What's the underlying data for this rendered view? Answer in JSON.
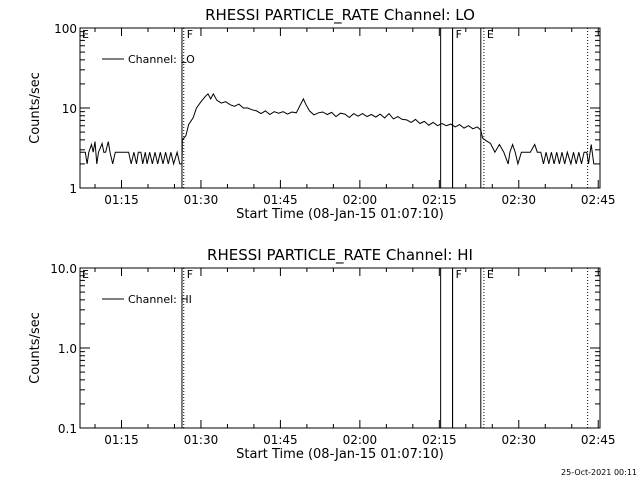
{
  "chart_data": [
    {
      "type": "line",
      "title": "RHESSI PARTICLE_RATE Channel: LO",
      "xlabel": "Start Time (08-Jan-15 01:07:10)",
      "ylabel": "Counts/sec",
      "yscale": "log",
      "ylim": [
        1,
        100
      ],
      "ytick_labels": [
        "1",
        "10",
        "100"
      ],
      "xlim": [
        0,
        5890
      ],
      "xtick_labels": [
        "01:15",
        "01:30",
        "01:45",
        "02:00",
        "02:15",
        "02:30",
        "02:45"
      ],
      "xtick_values": [
        470,
        1370,
        2270,
        3170,
        4070,
        4970,
        5870
      ],
      "legend": {
        "position": "top-left",
        "entries": [
          {
            "label": "Channel: LO"
          }
        ]
      },
      "event_markers": [
        {
          "x": 1175,
          "label": "F",
          "style": "dotted"
        },
        {
          "x": 4220,
          "label": "F",
          "style": "solid"
        },
        {
          "x": 4575,
          "label": "E",
          "style": "dotted"
        },
        {
          "x": 5750,
          "label": "",
          "style": "dotted"
        }
      ],
      "shade_lines": [
        1155,
        4085,
        4220,
        4540
      ],
      "corner_label": "E",
      "series": [
        {
          "values": [
            [
              0,
              2.8
            ],
            [
              60,
              2.8
            ],
            [
              80,
              2.0
            ],
            [
              100,
              2.8
            ],
            [
              130,
              3.5
            ],
            [
              150,
              2.8
            ],
            [
              170,
              3.8
            ],
            [
              190,
              2.0
            ],
            [
              210,
              2.8
            ],
            [
              250,
              3.6
            ],
            [
              270,
              2.8
            ],
            [
              290,
              2.8
            ],
            [
              320,
              3.8
            ],
            [
              340,
              2.8
            ],
            [
              370,
              2.0
            ],
            [
              400,
              2.8
            ],
            [
              450,
              2.8
            ],
            [
              500,
              2.8
            ],
            [
              550,
              2.8
            ],
            [
              580,
              2.0
            ],
            [
              610,
              2.8
            ],
            [
              640,
              2.0
            ],
            [
              660,
              2.8
            ],
            [
              690,
              2.8
            ],
            [
              710,
              2.0
            ],
            [
              740,
              2.8
            ],
            [
              760,
              2.0
            ],
            [
              790,
              2.8
            ],
            [
              820,
              2.0
            ],
            [
              850,
              2.8
            ],
            [
              880,
              2.0
            ],
            [
              910,
              2.8
            ],
            [
              940,
              2.0
            ],
            [
              970,
              2.8
            ],
            [
              1000,
              2.0
            ],
            [
              1030,
              2.8
            ],
            [
              1060,
              2.0
            ],
            [
              1100,
              2.8
            ],
            [
              1130,
              2.0
            ],
            [
              1155,
              2.0
            ],
            [
              1160,
              4.0
            ],
            [
              1200,
              4.5
            ],
            [
              1230,
              6.2
            ],
            [
              1280,
              7.5
            ],
            [
              1320,
              10.0
            ],
            [
              1370,
              12.0
            ],
            [
              1420,
              14.0
            ],
            [
              1450,
              15.0
            ],
            [
              1480,
              13.0
            ],
            [
              1510,
              15.0
            ],
            [
              1550,
              12.5
            ],
            [
              1600,
              11.5
            ],
            [
              1650,
              12.0
            ],
            [
              1700,
              11.0
            ],
            [
              1750,
              10.5
            ],
            [
              1800,
              11.2
            ],
            [
              1850,
              10.0
            ],
            [
              1900,
              10.0
            ],
            [
              1950,
              9.5
            ],
            [
              2000,
              9.2
            ],
            [
              2050,
              8.5
            ],
            [
              2100,
              9.2
            ],
            [
              2150,
              8.3
            ],
            [
              2200,
              9.0
            ],
            [
              2250,
              8.6
            ],
            [
              2300,
              9.0
            ],
            [
              2350,
              8.4
            ],
            [
              2400,
              8.9
            ],
            [
              2450,
              8.7
            ],
            [
              2500,
              11.2
            ],
            [
              2530,
              13.0
            ],
            [
              2560,
              11.0
            ],
            [
              2600,
              9.2
            ],
            [
              2650,
              8.2
            ],
            [
              2700,
              8.7
            ],
            [
              2750,
              8.9
            ],
            [
              2800,
              8.3
            ],
            [
              2850,
              8.8
            ],
            [
              2900,
              7.8
            ],
            [
              2950,
              8.6
            ],
            [
              3000,
              8.4
            ],
            [
              3050,
              7.6
            ],
            [
              3100,
              8.5
            ],
            [
              3150,
              7.9
            ],
            [
              3200,
              8.5
            ],
            [
              3250,
              7.8
            ],
            [
              3300,
              8.3
            ],
            [
              3350,
              7.7
            ],
            [
              3400,
              8.4
            ],
            [
              3450,
              7.5
            ],
            [
              3500,
              8.5
            ],
            [
              3550,
              7.3
            ],
            [
              3600,
              7.8
            ],
            [
              3650,
              7.2
            ],
            [
              3700,
              7.1
            ],
            [
              3750,
              6.6
            ],
            [
              3800,
              7.2
            ],
            [
              3850,
              6.4
            ],
            [
              3900,
              6.8
            ],
            [
              3950,
              6.1
            ],
            [
              4000,
              6.6
            ],
            [
              4050,
              6.0
            ],
            [
              4100,
              6.4
            ],
            [
              4150,
              6.0
            ],
            [
              4200,
              6.3
            ],
            [
              4250,
              5.8
            ],
            [
              4300,
              6.2
            ],
            [
              4350,
              5.6
            ],
            [
              4400,
              6.0
            ],
            [
              4450,
              5.5
            ],
            [
              4500,
              5.8
            ],
            [
              4540,
              5.3
            ],
            [
              4560,
              4.2
            ],
            [
              4600,
              3.9
            ],
            [
              4650,
              3.6
            ],
            [
              4700,
              2.8
            ],
            [
              4750,
              3.5
            ],
            [
              4800,
              2.8
            ],
            [
              4850,
              2.0
            ],
            [
              4870,
              2.8
            ],
            [
              4900,
              3.5
            ],
            [
              4930,
              2.8
            ],
            [
              4960,
              2.0
            ],
            [
              5000,
              2.8
            ],
            [
              5050,
              2.8
            ],
            [
              5100,
              2.8
            ],
            [
              5150,
              3.5
            ],
            [
              5180,
              2.8
            ],
            [
              5220,
              2.8
            ],
            [
              5250,
              2.0
            ],
            [
              5280,
              2.8
            ],
            [
              5310,
              2.0
            ],
            [
              5340,
              2.8
            ],
            [
              5370,
              2.0
            ],
            [
              5400,
              2.8
            ],
            [
              5430,
              2.0
            ],
            [
              5460,
              2.8
            ],
            [
              5490,
              2.0
            ],
            [
              5520,
              2.8
            ],
            [
              5560,
              2.0
            ],
            [
              5590,
              2.8
            ],
            [
              5620,
              2.0
            ],
            [
              5650,
              2.8
            ],
            [
              5680,
              2.0
            ],
            [
              5710,
              2.8
            ],
            [
              5740,
              2.8
            ],
            [
              5760,
              2.0
            ],
            [
              5790,
              3.5
            ],
            [
              5820,
              2.0
            ],
            [
              5840,
              2.0
            ]
          ]
        }
      ]
    },
    {
      "type": "line",
      "title": "RHESSI PARTICLE_RATE Channel: HI",
      "xlabel": "Start Time (08-Jan-15 01:07:10)",
      "ylabel": "Counts/sec",
      "yscale": "log",
      "ylim": [
        0.1,
        10
      ],
      "ytick_labels": [
        "0.1",
        "1.0",
        "10.0"
      ],
      "xlim": [
        0,
        5890
      ],
      "xtick_labels": [
        "01:15",
        "01:30",
        "01:45",
        "02:00",
        "02:15",
        "02:30",
        "02:45"
      ],
      "xtick_values": [
        470,
        1370,
        2270,
        3170,
        4070,
        4970,
        5870
      ],
      "legend": {
        "position": "top-left",
        "entries": [
          {
            "label": "Channel: HI"
          }
        ]
      },
      "event_markers": [
        {
          "x": 1175,
          "label": "F",
          "style": "dotted"
        },
        {
          "x": 4220,
          "label": "F",
          "style": "solid"
        },
        {
          "x": 4575,
          "label": "E",
          "style": "dotted"
        },
        {
          "x": 5750,
          "label": "",
          "style": "dotted"
        }
      ],
      "shade_lines": [
        1155,
        4085,
        4220,
        4540
      ],
      "corner_label": "E",
      "series": [
        {
          "values": []
        }
      ]
    }
  ],
  "footer": {
    "timestamp": "25-Oct-2021 00:11"
  }
}
